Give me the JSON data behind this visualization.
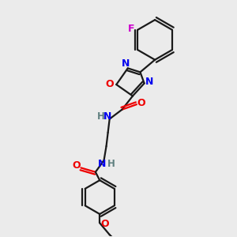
{
  "bg_color": "#ebebeb",
  "bond_color": "#1a1a1a",
  "N_color": "#0000ee",
  "O_color": "#ee0000",
  "F_color": "#cc00cc",
  "H_color": "#608080",
  "line_width": 1.6,
  "figsize": [
    3.0,
    3.0
  ],
  "dpi": 100,
  "xlim": [
    0,
    10
  ],
  "ylim": [
    0,
    10
  ]
}
